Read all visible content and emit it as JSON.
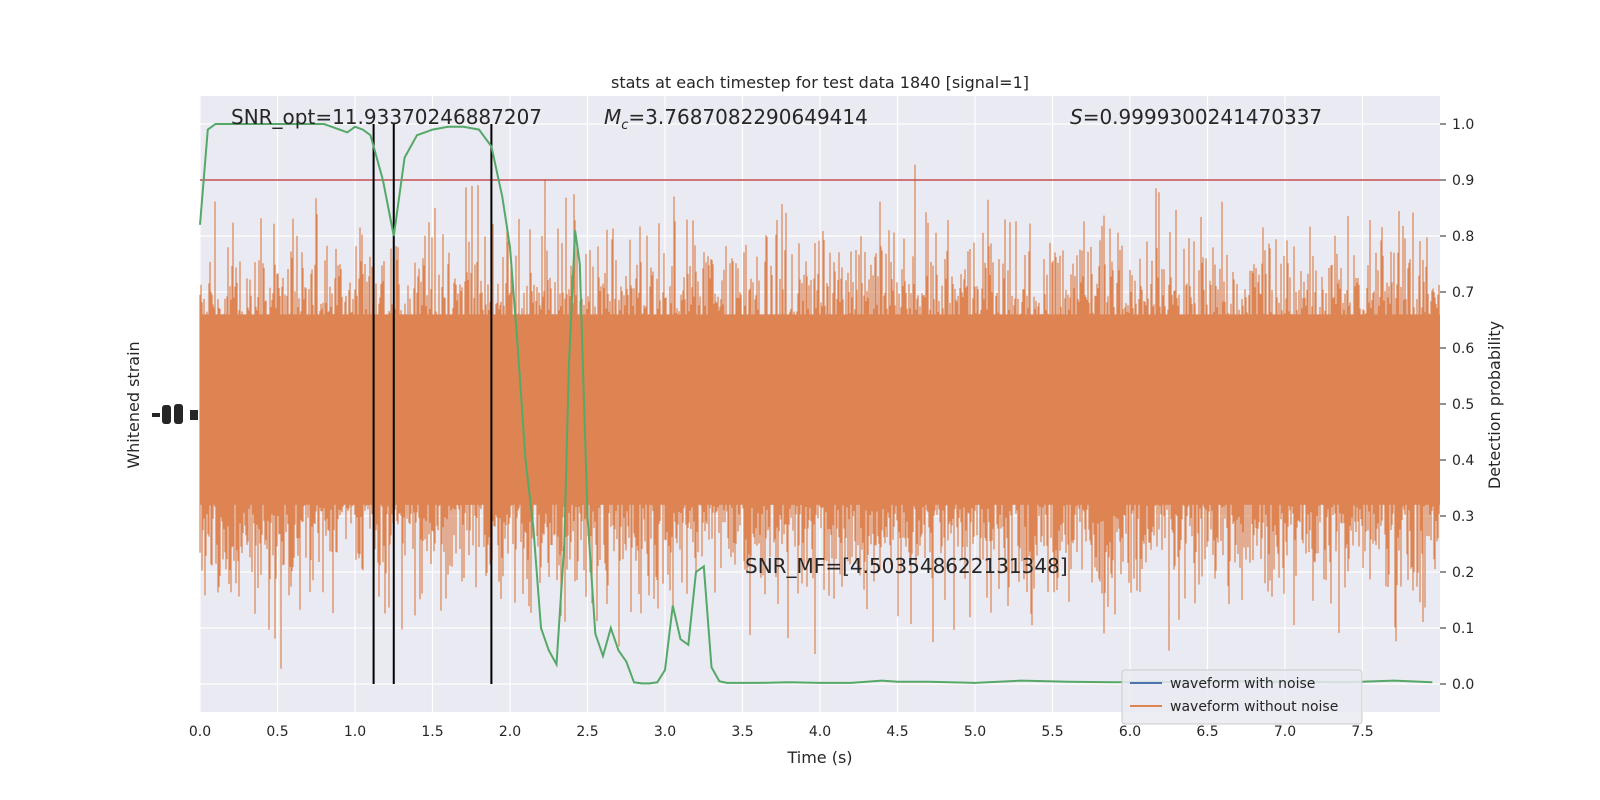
{
  "chart_data": {
    "type": "line",
    "title": "stats at each timestep for test data 1840 [signal=1]",
    "xlabel": "Time (s)",
    "ylabel_left": "Whitened strain",
    "ylabel_right": "Detection probability",
    "xlim": [
      0.0,
      8.0
    ],
    "ylim_right": [
      -0.05,
      1.05
    ],
    "x_ticks": [
      "0.0",
      "0.5",
      "1.0",
      "1.5",
      "2.0",
      "2.5",
      "3.0",
      "3.5",
      "4.0",
      "4.5",
      "5.0",
      "5.5",
      "6.0",
      "6.5",
      "7.0",
      "7.5"
    ],
    "x_tick_values": [
      0.0,
      0.5,
      1.0,
      1.5,
      2.0,
      2.5,
      3.0,
      3.5,
      4.0,
      4.5,
      5.0,
      5.5,
      6.0,
      6.5,
      7.0,
      7.5
    ],
    "right_ticks": [
      "0.0",
      "0.1",
      "0.2",
      "0.3",
      "0.4",
      "0.5",
      "0.6",
      "0.7",
      "0.8",
      "0.9",
      "1.0"
    ],
    "right_tick_values": [
      0.0,
      0.1,
      0.2,
      0.3,
      0.4,
      0.5,
      0.6,
      0.7,
      0.8,
      0.9,
      1.0
    ],
    "grid": true,
    "threshold": 0.9,
    "vertical_lines": [
      1.12,
      1.25,
      1.88
    ],
    "annotations": {
      "snr_opt": "SNR_opt=11.93370246887207",
      "mc": "=3.7687082290649414",
      "mc_symbol": "M",
      "mc_sub": "c",
      "s": "=0.9999300241470337",
      "s_symbol": "S",
      "snr_mf": "SNR_MF=[4.503548622131348]"
    },
    "series": [
      {
        "name": "Detection probability",
        "x": [
          0.0,
          0.05,
          0.1,
          0.15,
          0.2,
          0.3,
          0.4,
          0.5,
          0.6,
          0.7,
          0.8,
          0.9,
          0.95,
          1.0,
          1.05,
          1.1,
          1.18,
          1.25,
          1.32,
          1.4,
          1.45,
          1.5,
          1.6,
          1.7,
          1.8,
          1.88,
          1.95,
          2.0,
          2.05,
          2.1,
          2.15,
          2.2,
          2.25,
          2.3,
          2.35,
          2.38,
          2.42,
          2.45,
          2.5,
          2.55,
          2.6,
          2.65,
          2.7,
          2.75,
          2.8,
          2.85,
          2.9,
          2.95,
          3.0,
          3.05,
          3.1,
          3.15,
          3.2,
          3.25,
          3.3,
          3.35,
          3.4,
          3.45,
          3.5,
          3.6,
          3.8,
          4.0,
          4.2,
          4.4,
          4.5,
          4.7,
          5.0,
          5.3,
          5.6,
          5.9,
          6.1,
          6.4,
          6.7,
          6.9,
          7.1,
          7.4,
          7.7,
          7.95
        ],
        "values": [
          0.82,
          0.99,
          1.0,
          1.0,
          1.0,
          1.0,
          1.0,
          1.0,
          1.0,
          1.0,
          1.0,
          0.99,
          0.985,
          0.995,
          0.99,
          0.98,
          0.9,
          0.8,
          0.94,
          0.98,
          0.985,
          0.99,
          0.995,
          0.995,
          0.99,
          0.96,
          0.87,
          0.78,
          0.6,
          0.4,
          0.28,
          0.1,
          0.06,
          0.035,
          0.25,
          0.57,
          0.81,
          0.75,
          0.3,
          0.09,
          0.05,
          0.1,
          0.06,
          0.04,
          0.003,
          0.001,
          0.001,
          0.003,
          0.025,
          0.14,
          0.08,
          0.07,
          0.2,
          0.21,
          0.03,
          0.005,
          0.002,
          0.002,
          0.002,
          0.002,
          0.003,
          0.002,
          0.002,
          0.006,
          0.004,
          0.004,
          0.002,
          0.006,
          0.004,
          0.003,
          0.004,
          0.003,
          0.005,
          0.004,
          0.004,
          0.003,
          0.006,
          0.003
        ],
        "color": "#55a868"
      }
    ],
    "legend": {
      "placement": "lower-right",
      "entries": [
        {
          "label": "waveform with noise",
          "color": "#4c72b0"
        },
        {
          "label": "waveform without noise",
          "color": "#dd8452"
        }
      ]
    },
    "colors": {
      "background": "#eaeaf2",
      "strain": "#dd8452",
      "probability": "#55a868",
      "threshold": "#c44e52",
      "vline": "#000000",
      "grid": "#ffffff"
    }
  }
}
